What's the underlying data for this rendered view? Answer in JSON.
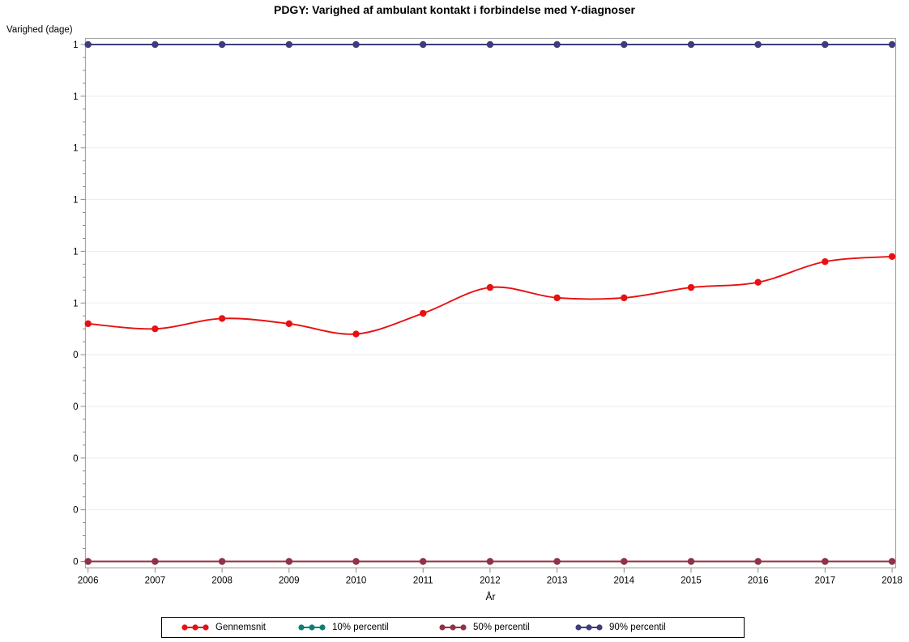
{
  "title": "PDGY: Varighed af ambulant kontakt i forbindelse med Y-diagnoser",
  "y_axis": {
    "label": "Varighed (dage)",
    "tick_labels_top_to_bottom": [
      "1",
      "1",
      "1",
      "1",
      "1",
      "1",
      "0",
      "0",
      "0",
      "0",
      "0"
    ]
  },
  "x_axis": {
    "label": "År",
    "tick_labels": [
      "2006",
      "2007",
      "2008",
      "2009",
      "2010",
      "2011",
      "2012",
      "2013",
      "2014",
      "2015",
      "2016",
      "2017",
      "2018"
    ]
  },
  "legend": {
    "items": [
      {
        "label": "Gennemsnit",
        "color": "#e81010"
      },
      {
        "label": "10% percentil",
        "color": "#0f7f75"
      },
      {
        "label": "50% percentil",
        "color": "#943148"
      },
      {
        "label": "90% percentil",
        "color": "#3d3d7d"
      }
    ]
  },
  "chart_data": {
    "type": "line",
    "title": "PDGY: Varighed af ambulant kontakt i forbindelse med Y-diagnoser",
    "xlabel": "År",
    "ylabel": "Varighed (dage)",
    "x": [
      2006,
      2007,
      2008,
      2009,
      2010,
      2011,
      2012,
      2013,
      2014,
      2015,
      2016,
      2017,
      2018
    ],
    "series": [
      {
        "name": "Gennemsnit",
        "color": "#e81010",
        "smooth": true,
        "values": [
          0.46,
          0.45,
          0.47,
          0.46,
          0.44,
          0.48,
          0.53,
          0.51,
          0.51,
          0.53,
          0.54,
          0.58,
          0.59
        ]
      },
      {
        "name": "10% percentil",
        "color": "#0f7f75",
        "smooth": false,
        "values": [
          0,
          0,
          0,
          0,
          0,
          0,
          0,
          0,
          0,
          0,
          0,
          0,
          0
        ]
      },
      {
        "name": "50% percentil",
        "color": "#943148",
        "smooth": false,
        "values": [
          0,
          0,
          0,
          0,
          0,
          0,
          0,
          0,
          0,
          0,
          0,
          0,
          0
        ]
      },
      {
        "name": "90% percentil",
        "color": "#3d3d7d",
        "smooth": false,
        "values": [
          1,
          1,
          1,
          1,
          1,
          1,
          1,
          1,
          1,
          1,
          1,
          1,
          1
        ]
      }
    ],
    "ylim": [
      0,
      1
    ],
    "ytick_step": 0.1,
    "ytick_label_format": "rounded to integer: ticks 0.5-1.0 display as 1, ticks 0.0-0.4 display as 0",
    "grid": "horizontal-major",
    "legend_position": "bottom",
    "notes": "10% and 50% percentile series overlap at 0 (teal line hidden under dark-red line); 90% percentile constant at 1; Gennemsnit values estimated from plot positions"
  }
}
